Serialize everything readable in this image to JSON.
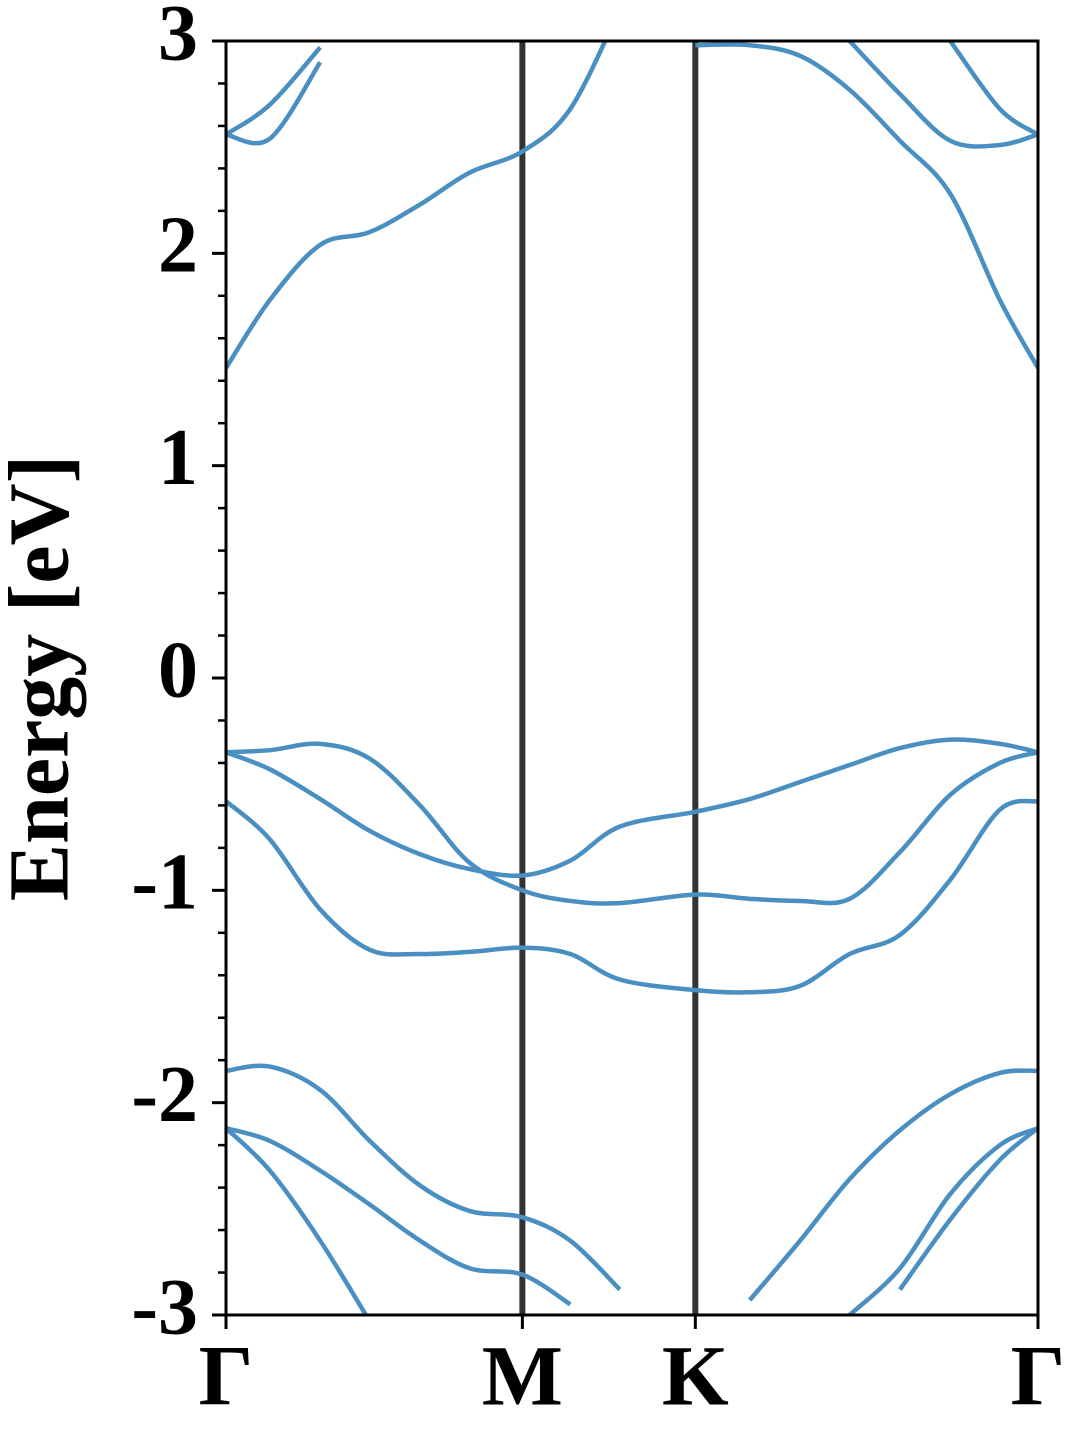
{
  "chart_data": {
    "type": "line",
    "ylabel": "Energy [eV]",
    "x": [
      0,
      0.054,
      0.116,
      0.177,
      0.239,
      0.3,
      0.365,
      0.424,
      0.485,
      0.578,
      0.645,
      0.707,
      0.768,
      0.83,
      0.892,
      0.953,
      1
    ],
    "xlim": [
      0,
      1
    ],
    "xticks": [
      {
        "value": 0,
        "label": "Γ"
      },
      {
        "value": 0.365,
        "label": "M"
      },
      {
        "value": 0.578,
        "label": "K"
      },
      {
        "value": 1,
        "label": "Γ"
      }
    ],
    "ylim": [
      -3,
      3
    ],
    "yticks": [
      -3,
      -2,
      -1,
      0,
      1,
      2,
      3
    ],
    "yminorticks": [
      -2.8,
      -2.6,
      -2.4,
      -2.2,
      -1.8,
      -1.6,
      -1.4,
      -1.2,
      -0.8,
      -0.6,
      -0.4,
      -0.2,
      0.2,
      0.4,
      0.6,
      0.8,
      1.2,
      1.4,
      1.6,
      1.8,
      2.2,
      2.4,
      2.6,
      2.8
    ],
    "vline_color": "#333333",
    "series": [
      {
        "color": "#4a8fc2",
        "values": [
          -0.35,
          -0.34,
          -0.31,
          -0.38,
          -0.6,
          -0.87,
          -1.0,
          -1.05,
          -1.06,
          -1.02,
          -1.04,
          -1.05,
          -1.04,
          -0.82,
          -0.55,
          -0.4,
          -0.35
        ]
      },
      {
        "color": "#4a8fc2",
        "values": [
          -0.35,
          -0.43,
          -0.57,
          -0.72,
          -0.83,
          -0.9,
          -0.93,
          -0.86,
          -0.7,
          -0.63,
          -0.57,
          -0.49,
          -0.41,
          -0.33,
          -0.29,
          -0.31,
          -0.35
        ]
      },
      {
        "color": "#4a8fc2",
        "values": [
          -0.58,
          -0.76,
          -1.09,
          -1.28,
          -1.3,
          -1.29,
          -1.27,
          -1.3,
          -1.42,
          -1.47,
          -1.48,
          -1.45,
          -1.3,
          -1.21,
          -0.95,
          -0.62,
          -0.58
        ]
      },
      {
        "color": "#4a8fc2",
        "values": [
          -1.85,
          -1.83,
          -1.94,
          -2.18,
          -2.39,
          -2.51,
          -2.54,
          -2.65,
          -2.88,
          null,
          -2.93,
          -2.65,
          -2.36,
          -2.13,
          -1.96,
          -1.86,
          -1.85
        ]
      },
      {
        "color": "#4a8fc2",
        "values": [
          -2.12,
          -2.18,
          -2.32,
          -2.48,
          -2.65,
          -2.78,
          -2.81,
          -2.95,
          null,
          null,
          null,
          null,
          -3.0,
          -2.78,
          -2.43,
          -2.2,
          -2.12
        ]
      },
      {
        "color": "#4a8fc2",
        "values": [
          -2.12,
          -2.32,
          -2.65,
          -3.03,
          null,
          null,
          null,
          null,
          null,
          null,
          null,
          null,
          null,
          -2.88,
          -2.55,
          -2.27,
          -2.12
        ]
      },
      {
        "color": "#4a8fc2",
        "values": [
          1.46,
          1.78,
          2.04,
          2.1,
          2.23,
          2.38,
          2.48,
          2.68,
          3.15,
          null,
          null,
          null,
          null,
          null,
          null,
          null,
          null
        ]
      },
      {
        "color": "#4a8fc2",
        "values": [
          null,
          null,
          null,
          null,
          null,
          null,
          null,
          null,
          null,
          2.98,
          2.98,
          2.93,
          2.77,
          2.53,
          2.28,
          1.78,
          1.46
        ]
      },
      {
        "color": "#4a8fc2",
        "values": [
          2.56,
          2.7,
          2.97,
          null,
          null,
          null,
          null,
          null,
          null,
          null,
          null,
          null,
          null,
          null,
          null,
          null,
          null
        ]
      },
      {
        "color": "#4a8fc2",
        "values": [
          2.56,
          2.54,
          2.9,
          null,
          null,
          null,
          null,
          null,
          null,
          null,
          null,
          null,
          null,
          null,
          null,
          null,
          null
        ]
      },
      {
        "color": "#4a8fc2",
        "values": [
          null,
          null,
          null,
          null,
          null,
          null,
          null,
          null,
          null,
          null,
          null,
          null,
          3.0,
          2.75,
          2.53,
          2.51,
          2.56
        ]
      },
      {
        "color": "#4a8fc2",
        "values": [
          null,
          null,
          null,
          null,
          null,
          null,
          null,
          null,
          null,
          null,
          null,
          null,
          null,
          null,
          3.0,
          2.68,
          2.56
        ]
      }
    ]
  }
}
